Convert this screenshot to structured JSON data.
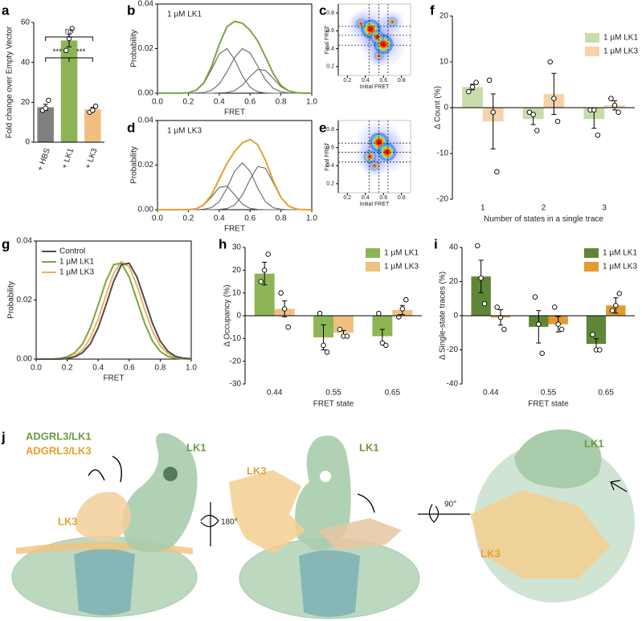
{
  "chart_data": [
    {
      "type": "bar",
      "label": "a",
      "categories": [
        "+ HBS",
        "+ LK1",
        "+ LK3"
      ],
      "values": [
        17.5,
        51,
        16.5
      ],
      "errors": [
        1.5,
        3.2,
        0.9
      ],
      "points": [
        [
          16,
          17,
          21
        ],
        [
          46,
          52,
          57
        ],
        [
          15,
          16,
          18
        ]
      ],
      "colors": [
        "#808080",
        "#8db356",
        "#f0c07f"
      ],
      "ylabel": "Fold change over Empty Vector",
      "ylim": [
        0,
        60
      ],
      "yticks": [
        0,
        20,
        40,
        60
      ],
      "annotations": [
        "ns",
        "***",
        "***"
      ]
    },
    {
      "type": "line",
      "label": "b",
      "annotation": "1 µM LK1",
      "x": [
        0,
        0.05,
        0.1,
        0.15,
        0.2,
        0.25,
        0.3,
        0.35,
        0.4,
        0.45,
        0.5,
        0.55,
        0.6,
        0.65,
        0.7,
        0.75,
        0.8,
        0.85,
        0.9,
        0.95,
        1
      ],
      "series": [
        {
          "color": "#7aa63f",
          "values": [
            0,
            0,
            0,
            0,
            0.0002,
            0.0013,
            0.0046,
            0.0119,
            0.0218,
            0.0298,
            0.0322,
            0.0314,
            0.0283,
            0.0234,
            0.0163,
            0.0089,
            0.0035,
            0.001,
            0.0002,
            0,
            0
          ]
        },
        {
          "color": "#666666",
          "values": [
            0,
            0,
            0,
            0,
            0.0002,
            0.0012,
            0.0043,
            0.0106,
            0.0176,
            0.02,
            0.0151,
            0.0078,
            0.0027,
            0.0006,
            0.0001,
            0,
            0,
            0,
            0,
            0,
            0
          ]
        },
        {
          "color": "#666666",
          "values": [
            0,
            0,
            0,
            0,
            0,
            0.0001,
            0.0003,
            0.0013,
            0.0041,
            0.0095,
            0.016,
            0.02,
            0.0181,
            0.0121,
            0.006,
            0.0022,
            0.0006,
            0.0001,
            0,
            0,
            0
          ]
        },
        {
          "color": "#666666",
          "values": [
            0,
            0,
            0,
            0,
            0,
            0,
            0,
            0,
            0.0001,
            0.0003,
            0.0011,
            0.0036,
            0.0075,
            0.0107,
            0.0102,
            0.0067,
            0.0029,
            0.0009,
            0.0002,
            0,
            0
          ]
        }
      ],
      "xlabel": "FRET",
      "ylabel": "Probability",
      "xlim": [
        0,
        1
      ],
      "ylim": [
        0,
        0.04
      ],
      "xticks": [
        {
          "value": 0,
          "label": "0.0"
        },
        0.2,
        0.4,
        0.6,
        0.8,
        {
          "value": 1,
          "label": "1.0"
        }
      ],
      "yticks": [
        {
          "value": 0,
          "label": "0.00"
        },
        {
          "value": 0.02,
          "label": "0.02"
        },
        {
          "value": 0.04,
          "label": "0.04"
        }
      ]
    },
    {
      "type": "heatmap",
      "label": "c",
      "xlabel": "Initial FRET",
      "ylabel": "Final FRET",
      "xlim": [
        0.1,
        0.9
      ],
      "ylim": [
        0.1,
        0.9
      ],
      "xticks": [
        0.2,
        0.4,
        0.6,
        0.8
      ],
      "yticks": [
        0.2,
        0.4,
        0.6,
        0.8
      ],
      "lines": [
        0.44,
        0.55,
        0.65
      ],
      "hotspots": {
        "x": [
          0.46,
          0.6,
          0.53,
          0.35,
          0.7,
          0.55
        ],
        "y": [
          0.62,
          0.45,
          0.53,
          0.68,
          0.7,
          0.32
        ],
        "values": [
          1,
          1,
          0.6,
          0.3,
          0.3,
          0.25
        ]
      }
    },
    {
      "type": "line",
      "label": "d",
      "annotation": "1 µM LK3",
      "x": [
        0,
        0.05,
        0.1,
        0.15,
        0.2,
        0.25,
        0.3,
        0.35,
        0.4,
        0.45,
        0.5,
        0.55,
        0.6,
        0.65,
        0.7,
        0.75,
        0.8,
        0.85,
        0.9,
        0.95,
        1
      ],
      "series": [
        {
          "color": "#e8a030",
          "values": [
            0,
            0,
            0,
            0,
            0,
            0.0004,
            0.0022,
            0.0066,
            0.0137,
            0.0207,
            0.0261,
            0.03,
            0.0315,
            0.0291,
            0.0222,
            0.013,
            0.0055,
            0.0016,
            0.0003,
            0,
            0
          ]
        },
        {
          "color": "#666666",
          "values": [
            0,
            0,
            0,
            0,
            0,
            0.0004,
            0.002,
            0.0057,
            0.01,
            0.0106,
            0.0067,
            0.0025,
            0.0006,
            0.0001,
            0,
            0,
            0,
            0,
            0,
            0,
            0
          ]
        },
        {
          "color": "#666666",
          "values": [
            0,
            0,
            0,
            0,
            0,
            0,
            0.0002,
            0.0009,
            0.0036,
            0.0096,
            0.0173,
            0.021,
            0.0173,
            0.0096,
            0.0036,
            0.0009,
            0.0002,
            0,
            0,
            0,
            0
          ]
        },
        {
          "color": "#666666",
          "values": [
            0,
            0,
            0,
            0,
            0,
            0,
            0,
            0,
            0.0001,
            0.0005,
            0.0021,
            0.0065,
            0.0136,
            0.0194,
            0.0186,
            0.0121,
            0.0053,
            0.0016,
            0.0003,
            0,
            0
          ]
        }
      ],
      "xlabel": "FRET",
      "ylabel": "Probability",
      "xlim": [
        0,
        1
      ],
      "ylim": [
        0,
        0.04
      ],
      "xticks": [
        {
          "value": 0,
          "label": "0.0"
        },
        0.2,
        0.4,
        0.6,
        0.8,
        {
          "value": 1,
          "label": "1.0"
        }
      ],
      "yticks": [
        {
          "value": 0,
          "label": "0.00"
        },
        {
          "value": 0.02,
          "label": "0.02"
        },
        {
          "value": 0.04,
          "label": "0.04"
        }
      ]
    },
    {
      "type": "heatmap",
      "label": "e",
      "xlabel": "Initial FRET",
      "ylabel": "Final FRET",
      "xlim": [
        0.1,
        0.9
      ],
      "ylim": [
        0.1,
        0.9
      ],
      "xticks": [
        0.2,
        0.4,
        0.6,
        0.8
      ],
      "yticks": [
        0.2,
        0.4,
        0.6,
        0.8
      ],
      "lines": [
        0.44,
        0.55,
        0.65
      ],
      "hotspots": {
        "x": [
          0.55,
          0.64,
          0.45,
          0.5
        ],
        "y": [
          0.66,
          0.55,
          0.5,
          0.4
        ],
        "values": [
          1,
          0.9,
          0.5,
          0.3
        ]
      }
    },
    {
      "type": "bar",
      "label": "f",
      "categories": [
        "1",
        "2",
        "3"
      ],
      "series": [
        {
          "name": "1 µM LK1",
          "color": "#c6dcaa",
          "values": [
            4.5,
            -2.5,
            -2.5
          ],
          "errors": [
            0.6,
            1.2,
            2
          ],
          "points": [
            [
              3.5,
              4.5,
              5.5
            ],
            [
              -1,
              -1.5,
              -5
            ],
            [
              -0.5,
              -0.5,
              -6
            ]
          ]
        },
        {
          "name": "1 µM LK3",
          "color": "#f6d3a8",
          "values": [
            -3,
            3,
            0.5
          ],
          "errors": [
            6,
            4.5,
            1
          ],
          "points": [
            [
              6,
              -1,
              -14
            ],
            [
              10,
              2,
              -3
            ],
            [
              2,
              0.5,
              -1
            ]
          ]
        }
      ],
      "xlabel": "Number of states in a single trace",
      "ylabel": "Δ Count (%)",
      "ylim": [
        -20,
        20
      ],
      "yticks": [
        -20,
        -10,
        0,
        10,
        20
      ]
    },
    {
      "type": "line",
      "label": "g",
      "x": [
        0,
        0.05,
        0.1,
        0.15,
        0.2,
        0.25,
        0.3,
        0.35,
        0.4,
        0.45,
        0.5,
        0.55,
        0.6,
        0.65,
        0.7,
        0.75,
        0.8,
        0.85,
        0.9,
        0.95,
        1
      ],
      "series": [
        {
          "name": "Control",
          "color": "#4d4d4d",
          "values": [
            0,
            0,
            0,
            0,
            0.0002,
            0.0008,
            0.0022,
            0.0052,
            0.0107,
            0.0183,
            0.0264,
            0.032,
            0.0325,
            0.0278,
            0.02,
            0.0121,
            0.0061,
            0.0026,
            0.0009,
            0.0003,
            0.0001
          ]
        },
        {
          "name": "1 µM LK1",
          "color": "#7aa63f",
          "values": [
            0,
            0,
            0,
            0.0002,
            0.0008,
            0.0022,
            0.0052,
            0.0107,
            0.0183,
            0.0264,
            0.032,
            0.0325,
            0.0278,
            0.02,
            0.0121,
            0.0061,
            0.0026,
            0.0009,
            0.0003,
            0.0001,
            0
          ]
        },
        {
          "name": "1 µM LK3",
          "color": "#f0b060",
          "values": [
            0,
            0,
            0,
            0.0001,
            0.0004,
            0.0012,
            0.0031,
            0.0072,
            0.0136,
            0.0217,
            0.0291,
            0.033,
            0.0312,
            0.0249,
            0.0167,
            0.0095,
            0.0045,
            0.0018,
            0.0006,
            0.0002,
            0
          ]
        }
      ],
      "xlabel": "FRET",
      "ylabel": "Probability",
      "xlim": [
        0,
        1
      ],
      "ylim": [
        0,
        0.04
      ],
      "xticks": [
        {
          "value": 0,
          "label": "0.0"
        },
        0.2,
        0.4,
        0.6,
        0.8,
        {
          "value": 1,
          "label": "1.0"
        }
      ],
      "yticks": [
        {
          "value": 0,
          "label": "0.00"
        },
        {
          "value": 0.02,
          "label": "0.02"
        },
        {
          "value": 0.04,
          "label": "0.04"
        }
      ]
    },
    {
      "type": "bar",
      "label": "h",
      "categories": [
        "0.44",
        "0.55",
        "0.65"
      ],
      "series": [
        {
          "name": "1 µM LK1",
          "color": "#8eb555",
          "values": [
            18.5,
            -9.5,
            -9
          ],
          "errors": [
            5,
            5.5,
            3
          ],
          "points": [
            [
              15,
              20,
              27
            ],
            [
              1,
              -13,
              -16
            ],
            [
              1,
              -12,
              -13
            ]
          ]
        },
        {
          "name": "1 µM LK3",
          "color": "#f0c07f",
          "values": [
            3,
            -7.5,
            2.5
          ],
          "errors": [
            3.5,
            1,
            2
          ],
          "points": [
            [
              10,
              3,
              -5
            ],
            [
              -6,
              -9,
              -9
            ],
            [
              -0.5,
              3,
              7
            ]
          ]
        }
      ],
      "xlabel": "FRET state",
      "ylabel": "Δ Occupancy (%)",
      "ylim": [
        -30,
        30
      ],
      "yticks": [
        -30,
        -20,
        -10,
        0,
        10,
        20,
        30
      ]
    },
    {
      "type": "bar",
      "label": "i",
      "categories": [
        "0.44",
        "0.55",
        "0.65"
      ],
      "series": [
        {
          "name": "1 µM LK1",
          "color": "#5f8636",
          "values": [
            23,
            -6.5,
            -16.5
          ],
          "errors": [
            9.5,
            9.5,
            3
          ],
          "points": [
            [
              41,
              22,
              7
            ],
            [
              11,
              -5,
              -22
            ],
            [
              -11,
              -20,
              -20
            ]
          ]
        },
        {
          "name": "1 µM LK3",
          "color": "#e39a2f",
          "values": [
            -1,
            -5,
            6
          ],
          "errors": [
            4.5,
            4.5,
            4.5
          ],
          "points": [
            [
              5,
              -1,
              -8
            ],
            [
              5,
              -5,
              -8
            ],
            [
              3,
              6,
              13
            ]
          ]
        }
      ],
      "xlabel": "FRET state",
      "ylabel": "Δ Single-state traces (%)",
      "ylim": [
        -40,
        40
      ],
      "yticks": [
        -40,
        -20,
        0,
        20,
        40
      ]
    }
  ],
  "panel_j": {
    "label": "j",
    "legend": [
      "ADGRL3/LK1",
      "ADGRL3/LK3"
    ],
    "labels": [
      "LK1",
      "LK3",
      "180°",
      "LK1",
      "LK3",
      "90°",
      "LK1",
      "LK3"
    ]
  }
}
